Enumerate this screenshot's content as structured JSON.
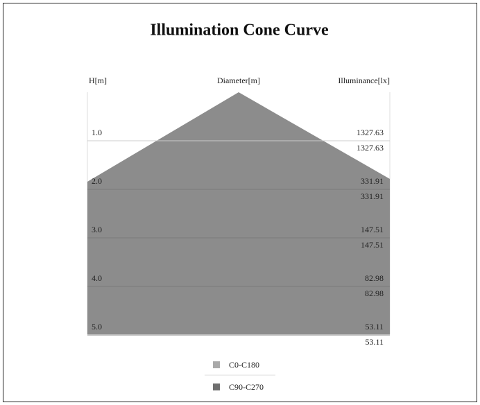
{
  "title": "Illumination Cone Curve",
  "headers": {
    "height": "H[m]",
    "diameter": "Diameter[m]",
    "illuminance": "Illuminance[lx]"
  },
  "rows": [
    {
      "height": "1.0",
      "c0": "1327.63",
      "c90": "1327.63"
    },
    {
      "height": "2.0",
      "c0": "331.91",
      "c90": "331.91"
    },
    {
      "height": "3.0",
      "c0": "147.51",
      "c90": "147.51"
    },
    {
      "height": "4.0",
      "c0": "82.98",
      "c90": "82.98"
    },
    {
      "height": "5.0",
      "c0": "53.11",
      "c90": "53.11"
    }
  ],
  "legend": [
    "C0-C180",
    "C90-C270"
  ]
}
